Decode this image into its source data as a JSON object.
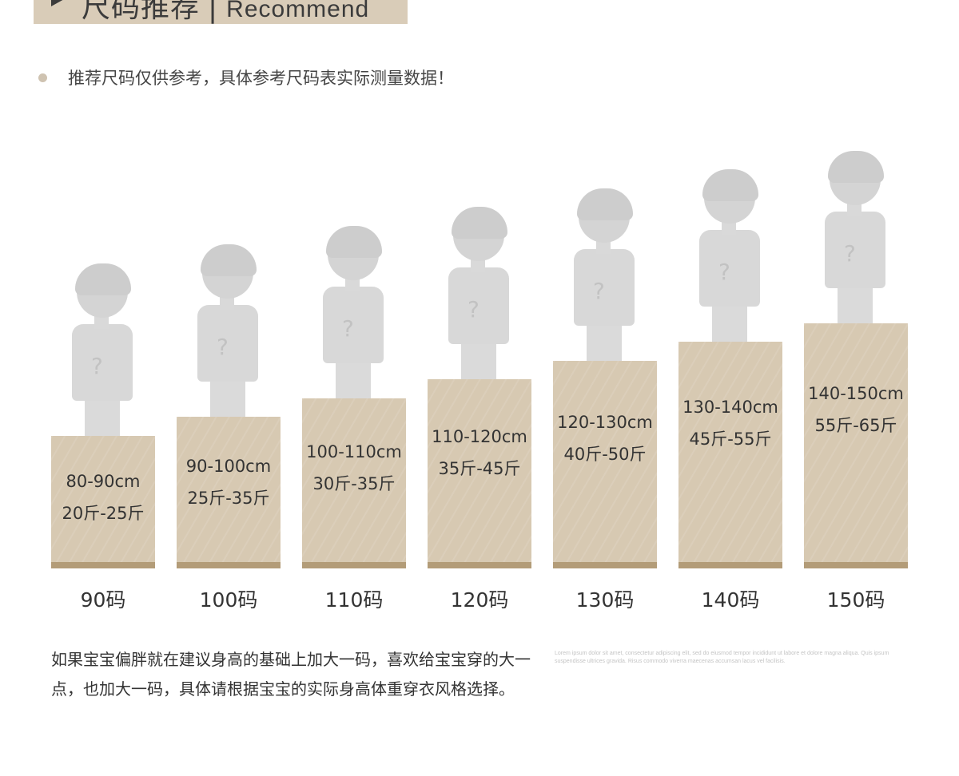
{
  "header": {
    "title_cn": "尺码推荐",
    "divider": "|",
    "title_en": "Recommend"
  },
  "notice": "推荐尺码仅供参考，具体参考尺码表实际测量数据！",
  "chart_data": {
    "type": "bar",
    "categories": [
      "90码",
      "100码",
      "110码",
      "120码",
      "130码",
      "140码",
      "150码"
    ],
    "heights": [
      "80-90cm",
      "90-100cm",
      "100-110cm",
      "110-120cm",
      "120-130cm",
      "130-140cm",
      "140-150cm"
    ],
    "weights": [
      "20斤-25斤",
      "25斤-35斤",
      "30斤-35斤",
      "35斤-45斤",
      "40斤-50斤",
      "45斤-55斤",
      "55斤-65斤"
    ],
    "values": [
      90,
      100,
      110,
      120,
      130,
      140,
      150
    ],
    "series_color": "#d7c9b2",
    "title": "",
    "xlabel": "",
    "ylabel": ""
  },
  "figure_mark": "?",
  "note": "如果宝宝偏胖就在建议身高的基础上加大一码，喜欢给宝宝穿的大一点，也加大一码，具体请根据宝宝的实际身高体重穿衣风格选择。",
  "lorem": "Lorem ipsum dolor sit amet, consectetur adipiscing elit, sed do eiusmod tempor incididunt ut labore et dolore magna aliqua. Quis ipsum suspendisse ultrices gravida. Risus commodo viverra maecenas accumsan lacus vel facilisis."
}
